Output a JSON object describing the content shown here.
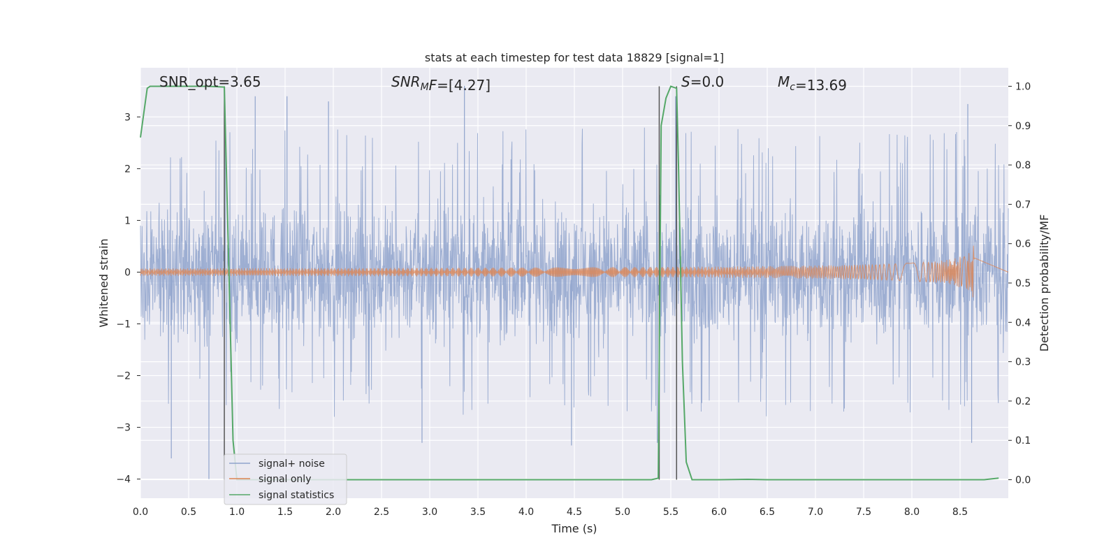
{
  "chart_data": {
    "type": "line",
    "title": "stats at each timestep for test data 18829 [signal=1]",
    "xlabel": "Time (s)",
    "ylabel_left": "Whitened strain",
    "ylabel_right": "Detection probability/MF",
    "xlim": [
      0,
      9.0
    ],
    "ylim_left": [
      -4.37,
      3.95
    ],
    "ylim_right": [
      -0.047,
      1.047
    ],
    "x_ticks": [
      "0.0",
      "0.5",
      "1.0",
      "1.5",
      "2.0",
      "2.5",
      "3.0",
      "3.5",
      "4.0",
      "4.5",
      "5.0",
      "5.5",
      "6.0",
      "6.5",
      "7.0",
      "7.5",
      "8.0",
      "8.5"
    ],
    "y_ticks_left": [
      "−4",
      "−3",
      "−2",
      "−1",
      "0",
      "1",
      "2",
      "3"
    ],
    "y_ticks_right": [
      "0.0",
      "0.1",
      "0.2",
      "0.3",
      "0.4",
      "0.5",
      "0.6",
      "0.7",
      "0.8",
      "0.9",
      "1.0"
    ],
    "grid": true,
    "legend_position": "lower-left",
    "annotations": [
      {
        "prefix": "SNR_opt=3.65",
        "italic": "",
        "sub": "",
        "suffix": ""
      },
      {
        "prefix": "",
        "italic": "SNR",
        "sub": "M",
        "suffix": "F=[4.27]",
        "italic_suffix_lead": "F"
      },
      {
        "prefix": "",
        "italic": "S",
        "sub": "",
        "suffix": "=0.0"
      },
      {
        "prefix": "",
        "italic": "M",
        "sub": "c",
        "suffix": "=13.69"
      }
    ],
    "vlines_x": [
      0.87,
      5.38,
      5.56
    ],
    "series": [
      {
        "name": "signal+ noise",
        "color": "#8fa3cc",
        "axis": "left",
        "description_range": [
          -1.8,
          1.8
        ],
        "spikes": [
          {
            "x": 0.32,
            "y": -3.6
          },
          {
            "x": 0.71,
            "y": -4.0
          },
          {
            "x": 1.19,
            "y": 3.4
          },
          {
            "x": 1.52,
            "y": 3.4
          },
          {
            "x": 1.95,
            "y": 3.3
          },
          {
            "x": 2.92,
            "y": -3.3
          },
          {
            "x": 3.36,
            "y": 3.6
          },
          {
            "x": 4.47,
            "y": -3.35
          },
          {
            "x": 5.36,
            "y": -3.3
          },
          {
            "x": 5.55,
            "y": 3.4
          },
          {
            "x": 8.58,
            "y": 3.25
          },
          {
            "x": 8.62,
            "y": -3.3
          }
        ]
      },
      {
        "name": "signal only",
        "color": "#dd8452",
        "axis": "left",
        "chirp_end_x": 8.65,
        "chirp_peak_amplitude": 0.6
      },
      {
        "name": "signal statistics",
        "color": "#55a868",
        "axis": "right",
        "x": [
          0.0,
          0.07,
          0.1,
          0.2,
          0.3,
          0.5,
          0.7,
          0.87,
          0.88,
          0.92,
          0.96,
          1.0,
          1.2,
          2.0,
          3.0,
          4.0,
          5.0,
          5.3,
          5.37,
          5.4,
          5.45,
          5.5,
          5.56,
          5.58,
          5.62,
          5.66,
          5.72,
          5.8,
          6.0,
          6.3,
          6.5,
          7.0,
          8.0,
          8.5,
          8.75,
          8.9
        ],
        "y": [
          0.87,
          0.995,
          1.0,
          1.0,
          1.0,
          1.0,
          1.0,
          0.998,
          0.9,
          0.5,
          0.1,
          0.0,
          0.0,
          0.0,
          0.0,
          0.0,
          0.0,
          0.0,
          0.004,
          0.9,
          0.97,
          1.0,
          0.995,
          0.8,
          0.3,
          0.045,
          0.0,
          0.0,
          0.0,
          0.001,
          0.0,
          0.0,
          0.0,
          0.0,
          0.0,
          0.004
        ]
      }
    ]
  }
}
